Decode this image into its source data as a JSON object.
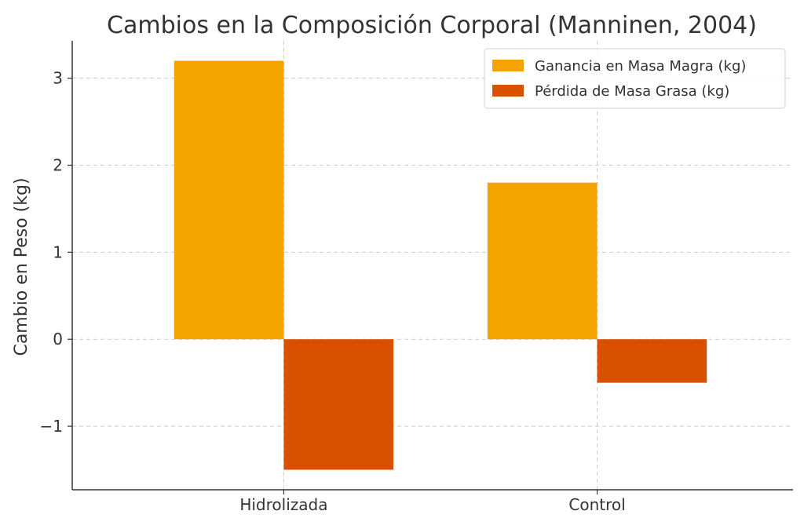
{
  "chart_data": {
    "type": "bar",
    "title": "Cambios en la Composición Corporal (Manninen, 2004)",
    "xlabel": "",
    "ylabel": "Cambio en Peso (kg)",
    "categories": [
      "Hidrolizada",
      "Control"
    ],
    "series": [
      {
        "name": "Ganancia en Masa Magra (kg)",
        "values": [
          3.2,
          1.8
        ],
        "color": "#F4A300"
      },
      {
        "name": "Pérdida de Masa Grasa (kg)",
        "values": [
          -1.5,
          -0.5
        ],
        "color": "#D95000"
      }
    ],
    "ylim": [
      -1.73,
      3.43
    ],
    "yticks": [
      -1,
      0,
      1,
      2,
      3
    ],
    "ytick_labels": [
      "−1",
      "0",
      "1",
      "2",
      "3"
    ],
    "grid": true,
    "legend_position": "top-right"
  }
}
